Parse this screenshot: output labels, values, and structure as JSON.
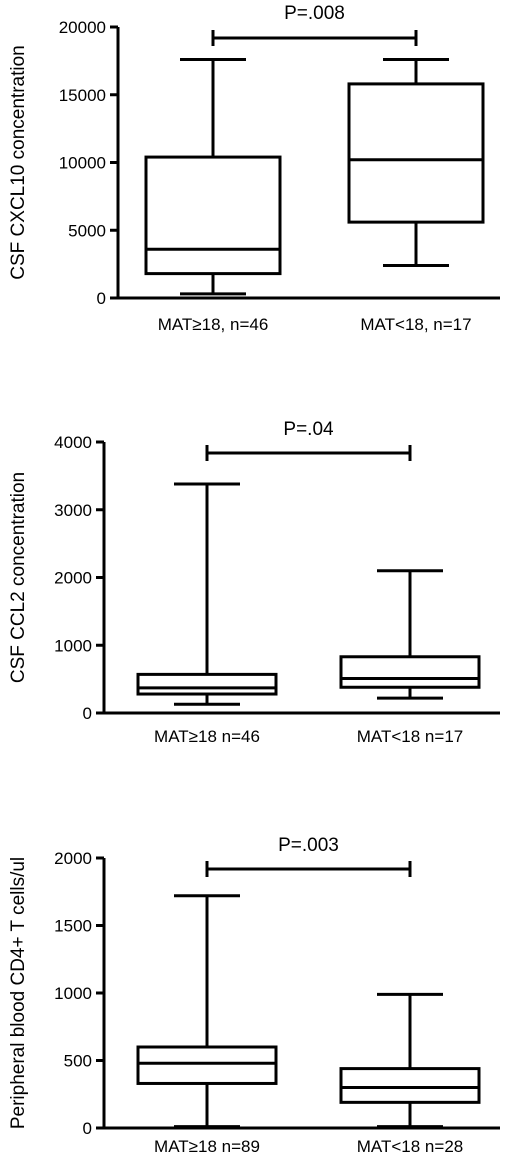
{
  "chart_data": [
    {
      "type": "box",
      "ylabel": "CSF CXCL10 concentration",
      "ylim": [
        0,
        20000
      ],
      "yticks": [
        0,
        5000,
        10000,
        15000,
        20000
      ],
      "categories": [
        "MAT≥18, n=46",
        "MAT<18, n=17"
      ],
      "boxes": [
        {
          "min": 300,
          "q1": 1800,
          "median": 3600,
          "q3": 10400,
          "max": 17600
        },
        {
          "min": 2400,
          "q1": 5600,
          "median": 10200,
          "q3": 15800,
          "max": 17600
        }
      ],
      "annotation": "P=.008"
    },
    {
      "type": "box",
      "ylabel": "CSF CCL2 concentration",
      "ylim": [
        0,
        4000
      ],
      "yticks": [
        0,
        1000,
        2000,
        3000,
        4000
      ],
      "categories": [
        "MAT≥18 n=46",
        "MAT<18 n=17"
      ],
      "boxes": [
        {
          "min": 130,
          "q1": 280,
          "median": 370,
          "q3": 570,
          "max": 3380
        },
        {
          "min": 220,
          "q1": 380,
          "median": 510,
          "q3": 830,
          "max": 2100
        }
      ],
      "annotation": "P=.04"
    },
    {
      "type": "box",
      "ylabel": "Peripheral blood CD4+ T cells/ul",
      "ylim": [
        0,
        2000
      ],
      "yticks": [
        0,
        500,
        1000,
        1500,
        2000
      ],
      "categories": [
        "MAT≥18 n=89",
        "MAT<18 n=28"
      ],
      "boxes": [
        {
          "min": 10,
          "q1": 330,
          "median": 480,
          "q3": 600,
          "max": 1720
        },
        {
          "min": 10,
          "q1": 190,
          "median": 300,
          "q3": 440,
          "max": 990
        }
      ],
      "annotation": "P=.003"
    }
  ]
}
